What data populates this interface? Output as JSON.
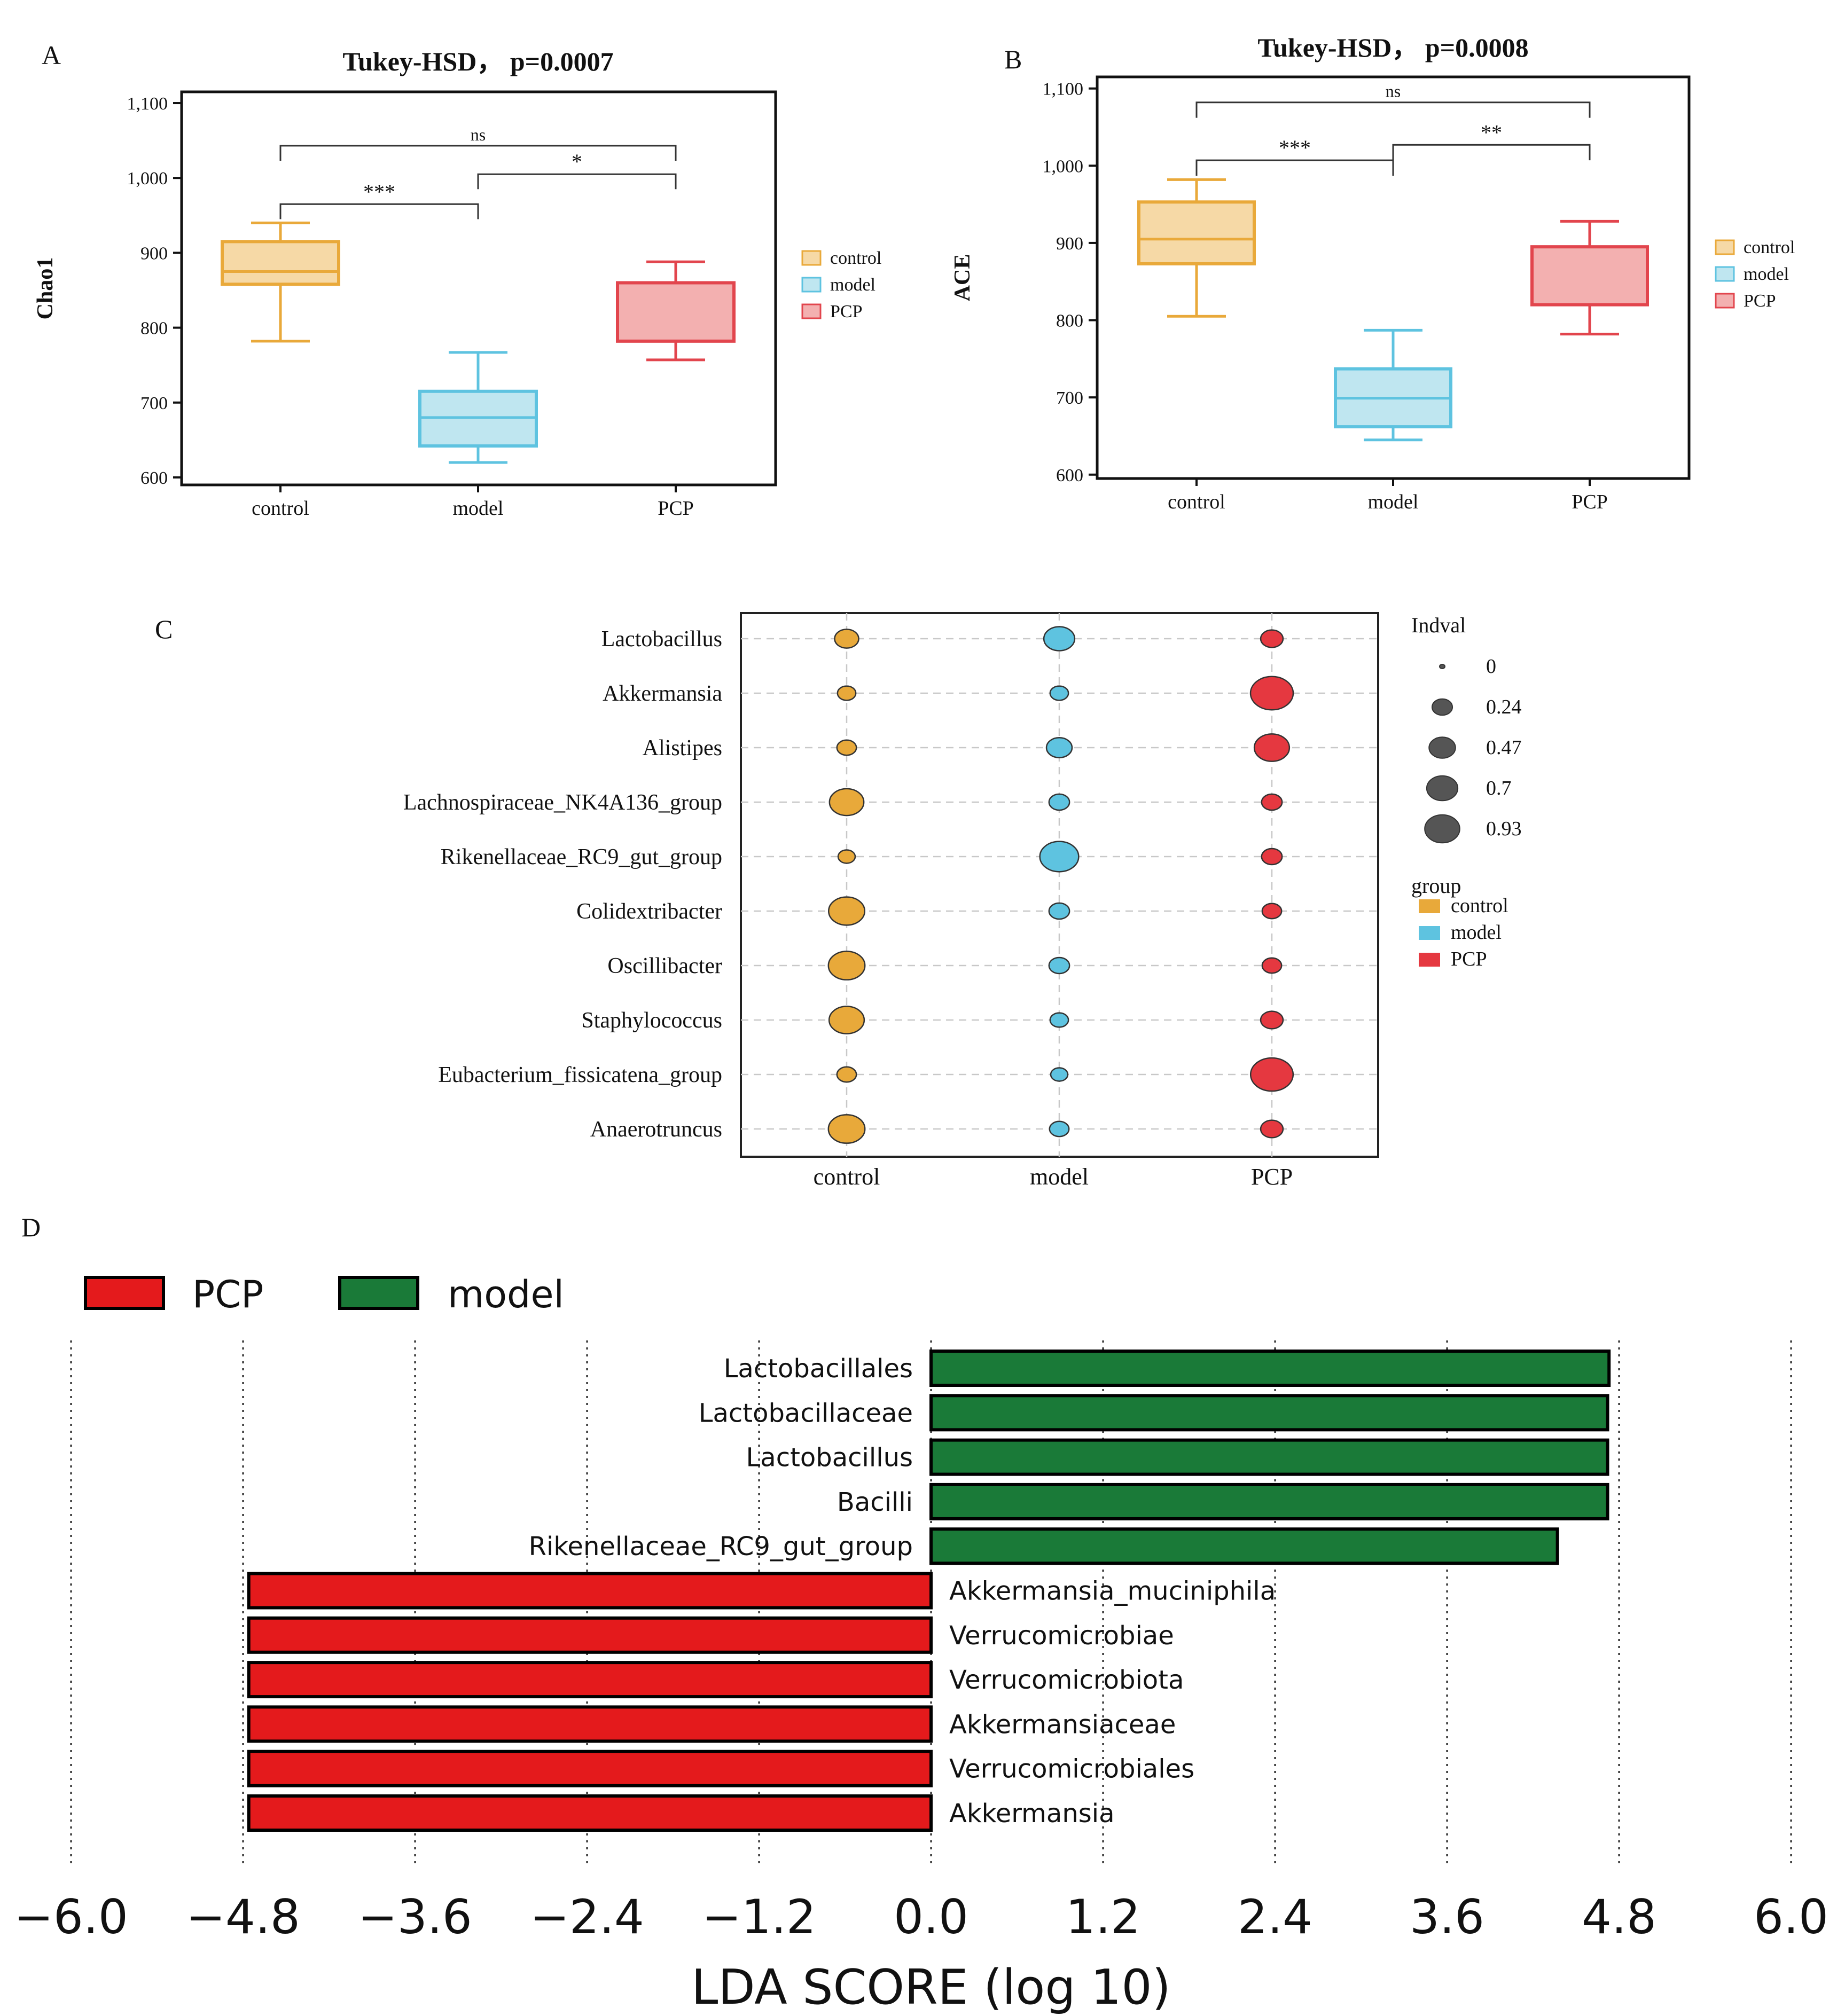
{
  "chart_data": [
    {
      "panel": "A",
      "type": "box",
      "title": "Tukey-HSD， p=0.0007",
      "xlabel": "",
      "ylabel": "Chao1",
      "categories": [
        "control",
        "model",
        "PCP"
      ],
      "ylim": [
        590,
        1115
      ],
      "yticks": [
        600,
        700,
        800,
        900,
        1000,
        1100
      ],
      "ytick_labels": [
        "600",
        "700",
        "800",
        "900",
        "1,000",
        "1,100"
      ],
      "boxes": [
        {
          "group": "control",
          "min": 782,
          "q1": 858,
          "median": 875,
          "q3": 915,
          "max": 940
        },
        {
          "group": "model",
          "min": 620,
          "q1": 642,
          "median": 680,
          "q3": 715,
          "max": 767
        },
        {
          "group": "PCP",
          "min": 757,
          "q1": 782,
          "median": 782,
          "q3": 860,
          "max": 888
        }
      ],
      "significance": [
        {
          "from": "control",
          "to": "PCP",
          "label": "ns",
          "y": 1043,
          "drop": 20
        },
        {
          "from": "model",
          "to": "PCP",
          "label": "*",
          "y": 1005,
          "drop": 20
        },
        {
          "from": "control",
          "to": "model",
          "label": "***",
          "y": 965,
          "drop": 20
        }
      ],
      "legend": [
        {
          "name": "control",
          "fill": "#f6d9a6",
          "stroke": "#e9a93a"
        },
        {
          "name": "model",
          "fill": "#bfe6f0",
          "stroke": "#5ec3e0"
        },
        {
          "name": "PCP",
          "fill": "#f3b0b0",
          "stroke": "#e2454d"
        }
      ]
    },
    {
      "panel": "B",
      "type": "box",
      "title": "Tukey-HSD， p=0.0008",
      "xlabel": "",
      "ylabel": "ACE",
      "categories": [
        "control",
        "model",
        "PCP"
      ],
      "ylim": [
        595,
        1115
      ],
      "yticks": [
        600,
        700,
        800,
        900,
        1000,
        1100
      ],
      "ytick_labels": [
        "600",
        "700",
        "800",
        "900",
        "1,000",
        "1,100"
      ],
      "boxes": [
        {
          "group": "control",
          "min": 805,
          "q1": 873,
          "median": 905,
          "q3": 953,
          "max": 982
        },
        {
          "group": "model",
          "min": 645,
          "q1": 662,
          "median": 699,
          "q3": 737,
          "max": 787
        },
        {
          "group": "PCP",
          "min": 782,
          "q1": 820,
          "median": 820,
          "q3": 895,
          "max": 928
        }
      ],
      "significance": [
        {
          "from": "control",
          "to": "PCP",
          "label": "ns",
          "y": 1082,
          "drop": 20
        },
        {
          "from": "model",
          "to": "PCP",
          "label": "**",
          "y": 1027,
          "drop": 20
        },
        {
          "from": "control",
          "to": "model",
          "label": "***",
          "y": 1007,
          "drop": 20
        }
      ],
      "legend": [
        {
          "name": "control",
          "fill": "#f6d9a6",
          "stroke": "#e9a93a"
        },
        {
          "name": "model",
          "fill": "#bfe6f0",
          "stroke": "#5ec3e0"
        },
        {
          "name": "PCP",
          "fill": "#f3b0b0",
          "stroke": "#e2454d"
        }
      ]
    },
    {
      "panel": "C",
      "type": "scatter",
      "title": "",
      "xlabel": "",
      "ylabel": "",
      "categories": [
        "control",
        "model",
        "PCP"
      ],
      "genera": [
        "Lactobacillus",
        "Akkermansia",
        "Alistipes",
        "Lachnospiraceae_NK4A136_group",
        "Rikenellaceae_RC9_gut_group",
        "Colidextribacter",
        "Oscillibacter",
        "Staphylococcus",
        "Eubacterium_fissicatena_group",
        "Anaerotruncus"
      ],
      "series": [
        {
          "name": "control",
          "color": "#e8a93a",
          "values": [
            0.22,
            0.1,
            0.12,
            0.55,
            0.08,
            0.62,
            0.64,
            0.58,
            0.12,
            0.64
          ]
        },
        {
          "name": "model",
          "color": "#5ec3e0",
          "values": [
            0.42,
            0.1,
            0.26,
            0.14,
            0.74,
            0.14,
            0.14,
            0.1,
            0.08,
            0.12
          ]
        },
        {
          "name": "PCP",
          "color": "#e53840",
          "values": [
            0.18,
            0.93,
            0.58,
            0.14,
            0.14,
            0.12,
            0.12,
            0.18,
            0.92,
            0.18
          ]
        }
      ],
      "size_legend_title": "Indval",
      "size_legend": [
        0,
        0.24,
        0.47,
        0.7,
        0.93
      ],
      "size_legend_labels": [
        "0",
        "0.24",
        "0.47",
        "0.7",
        "0.93"
      ],
      "group_legend_title": "group",
      "group_legend": [
        "control",
        "model",
        "PCP"
      ]
    },
    {
      "panel": "D",
      "type": "bar",
      "title": "",
      "xlabel": "LDA SCORE (log 10)",
      "ylabel": "",
      "xlim": [
        -6.0,
        6.0
      ],
      "xticks": [
        -6.0,
        -4.8,
        -3.6,
        -2.4,
        -1.2,
        0.0,
        1.2,
        2.4,
        3.6,
        4.8,
        6.0
      ],
      "xtick_labels": [
        "−6.0",
        "−4.8",
        "−3.6",
        "−2.4",
        "−1.2",
        "0.0",
        "1.2",
        "2.4",
        "3.6",
        "4.8",
        "6.0"
      ],
      "categories": [
        "Lactobacillales",
        "Lactobacillaceae",
        "Lactobacillus",
        "Bacilli",
        "Rikenellaceae_RC9_gut_group",
        "Akkermansia_muciniphila",
        "Verrucomicrobiae",
        "Verrucomicrobiota",
        "Akkermansiaceae",
        "Verrucomicrobiales",
        "Akkermansia"
      ],
      "values": [
        4.73,
        4.72,
        4.72,
        4.72,
        4.37,
        -4.76,
        -4.76,
        -4.76,
        -4.76,
        -4.76,
        -4.76
      ],
      "groups": [
        "model",
        "model",
        "model",
        "model",
        "model",
        "PCP",
        "PCP",
        "PCP",
        "PCP",
        "PCP",
        "PCP"
      ],
      "legend": [
        {
          "name": "PCP",
          "color": "#e41a1c"
        },
        {
          "name": "model",
          "color": "#1a7a38"
        }
      ]
    }
  ],
  "panels": {
    "a": "A",
    "b": "B",
    "c": "C",
    "d": "D"
  }
}
